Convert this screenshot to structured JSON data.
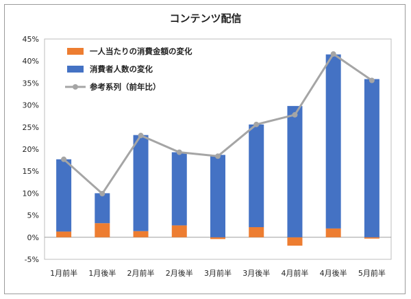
{
  "chart_data": {
    "type": "bar",
    "title": "コンテンツ配信",
    "categories": [
      "1月前半",
      "1月後半",
      "2月前半",
      "2月後半",
      "3月前半",
      "3月後半",
      "4月前半",
      "4月後半",
      "5月前半"
    ],
    "series": [
      {
        "name": "一人当たりの消費金額の変化",
        "kind": "stacked-bar",
        "color": "#ED7D31",
        "values": [
          1.3,
          3.2,
          1.4,
          2.7,
          -0.4,
          2.3,
          -1.9,
          2.0,
          -0.3
        ]
      },
      {
        "name": "消費者人数の変化",
        "kind": "stacked-bar",
        "color": "#4472C4",
        "values": [
          16.4,
          6.8,
          21.8,
          16.6,
          18.7,
          23.3,
          29.8,
          39.5,
          35.9
        ]
      },
      {
        "name": "参考系列（前年比）",
        "kind": "line",
        "color": "#A5A5A5",
        "values": [
          17.7,
          9.9,
          23.1,
          19.3,
          18.4,
          25.6,
          27.8,
          41.6,
          35.6
        ]
      }
    ],
    "ylim": [
      -5,
      45
    ],
    "yticks": [
      "-5%",
      "0%",
      "5%",
      "10%",
      "15%",
      "20%",
      "25%",
      "30%",
      "35%",
      "40%",
      "45%"
    ],
    "ytick_values": [
      -5,
      0,
      5,
      10,
      15,
      20,
      25,
      30,
      35,
      40,
      45
    ],
    "grid": false,
    "legend": "top-left"
  }
}
